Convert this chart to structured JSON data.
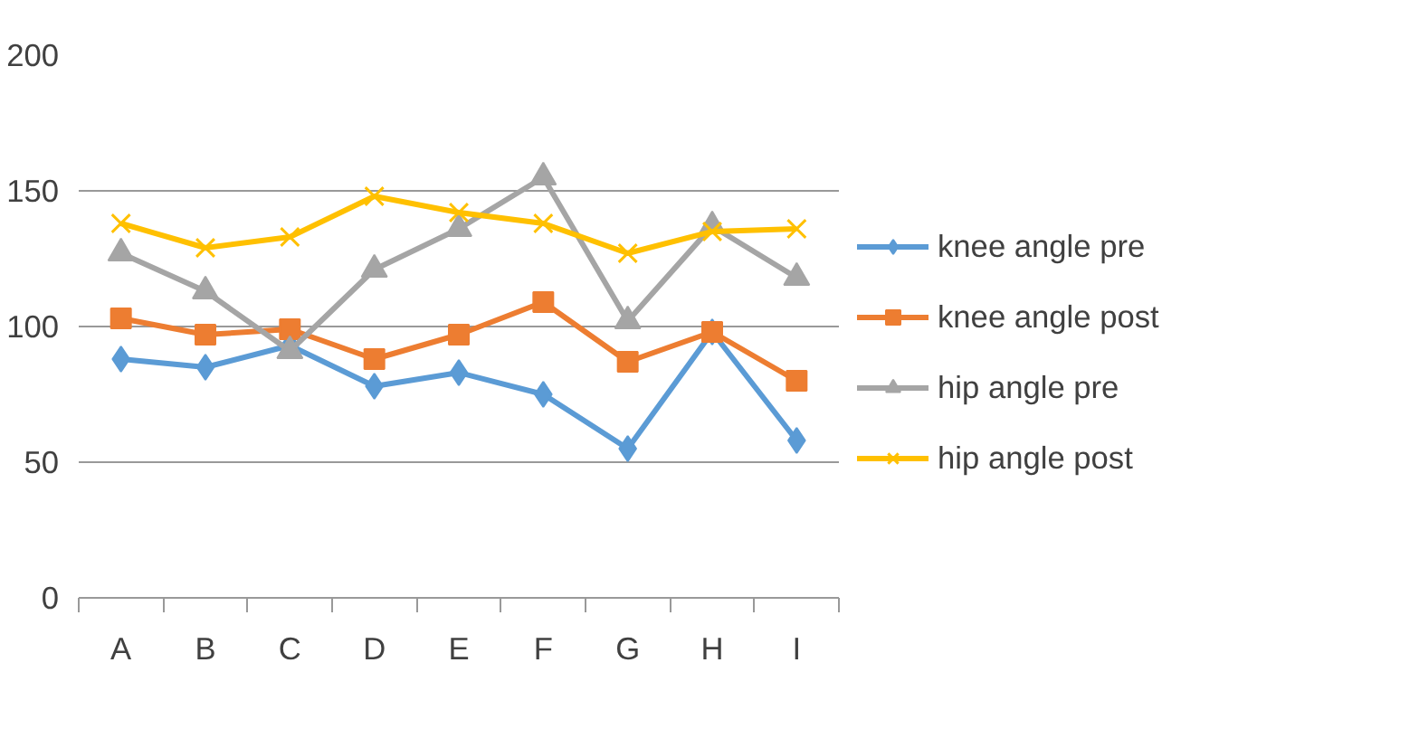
{
  "chart_data": {
    "type": "line",
    "categories": [
      "A",
      "B",
      "C",
      "D",
      "E",
      "F",
      "G",
      "H",
      "I"
    ],
    "ylim": [
      0,
      200
    ],
    "yticks": [
      0,
      50,
      100,
      150,
      200
    ],
    "grid": "y",
    "legend": "right",
    "series": [
      {
        "name": "knee angle pre",
        "color": "#5b9bd5",
        "marker": "diamond",
        "values": [
          88,
          85,
          93,
          78,
          83,
          75,
          55,
          98,
          58
        ]
      },
      {
        "name": "knee angle post",
        "color": "#ed7d31",
        "marker": "square",
        "values": [
          103,
          97,
          99,
          88,
          97,
          109,
          87,
          98,
          80
        ]
      },
      {
        "name": "hip angle pre",
        "color": "#a5a5a5",
        "marker": "triangle",
        "values": [
          127,
          113,
          91,
          121,
          136,
          155,
          102,
          137,
          118
        ]
      },
      {
        "name": "hip angle post",
        "color": "#ffc000",
        "marker": "x",
        "values": [
          138,
          129,
          133,
          148,
          142,
          138,
          127,
          135,
          136
        ]
      }
    ]
  }
}
